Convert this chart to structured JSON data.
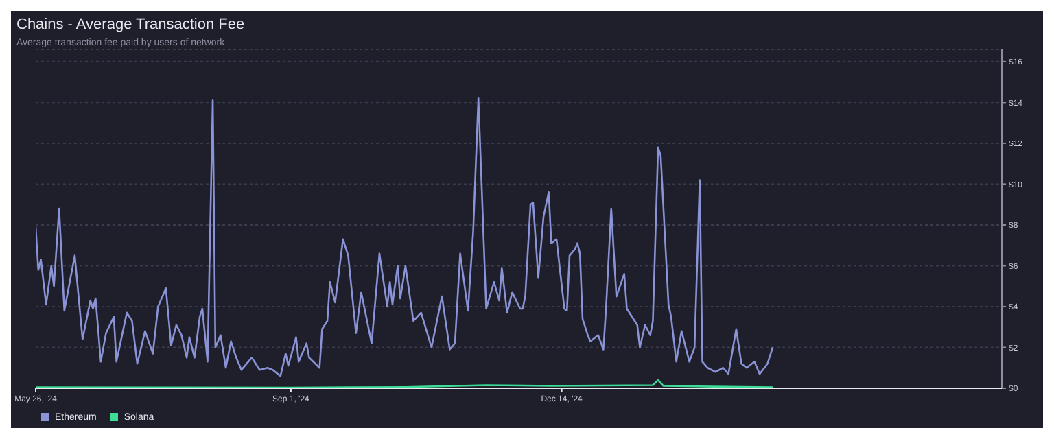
{
  "chart_data": {
    "type": "line",
    "title": "Chains - Average Transaction Fee",
    "subtitle": "Average transaction fee paid by users of network",
    "xlim": [
      "2024-05-26",
      "2025-06-01"
    ],
    "xticks": [
      {
        "value": "2024-05-26",
        "label": "May 26, '24"
      },
      {
        "value": "2024-09-01",
        "label": "Sep 1, '24"
      },
      {
        "value": "2024-12-14",
        "label": "Dec 14, '24"
      }
    ],
    "ylim": [
      0,
      16.6
    ],
    "yticks": [
      {
        "value": 0,
        "label": "$0"
      },
      {
        "value": 2,
        "label": "$2"
      },
      {
        "value": 4,
        "label": "$4"
      },
      {
        "value": 6,
        "label": "$6"
      },
      {
        "value": 8,
        "label": "$8"
      },
      {
        "value": 10,
        "label": "$10"
      },
      {
        "value": 12,
        "label": "$12"
      },
      {
        "value": 14,
        "label": "$14"
      },
      {
        "value": 16,
        "label": "$16"
      }
    ],
    "grid": "y",
    "legend": "bottom left",
    "marker": "none",
    "line_style": "solid",
    "series": [
      {
        "name": "Ethereum",
        "color": "#8a93d6",
        "x": [
          "2024-05-26",
          "2024-05-27",
          "2024-05-28",
          "2024-05-30",
          "2024-06-01",
          "2024-06-02",
          "2024-06-04",
          "2024-06-06",
          "2024-06-10",
          "2024-06-13",
          "2024-06-16",
          "2024-06-17",
          "2024-06-18",
          "2024-06-20",
          "2024-06-22",
          "2024-06-25",
          "2024-06-26",
          "2024-06-30",
          "2024-07-02",
          "2024-07-04",
          "2024-07-07",
          "2024-07-10",
          "2024-07-12",
          "2024-07-15",
          "2024-07-17",
          "2024-07-19",
          "2024-07-21",
          "2024-07-23",
          "2024-07-24",
          "2024-07-26",
          "2024-07-28",
          "2024-07-29",
          "2024-07-31",
          "2024-08-02",
          "2024-08-03",
          "2024-08-05",
          "2024-08-07",
          "2024-08-09",
          "2024-08-11",
          "2024-08-13",
          "2024-08-17",
          "2024-08-20",
          "2024-08-23",
          "2024-08-25",
          "2024-08-28",
          "2024-08-30",
          "2024-08-31",
          "2024-09-03",
          "2024-09-04",
          "2024-09-07",
          "2024-09-08",
          "2024-09-12",
          "2024-09-13",
          "2024-09-15",
          "2024-09-16",
          "2024-09-18",
          "2024-09-21",
          "2024-09-23",
          "2024-09-26",
          "2024-09-28",
          "2024-10-02",
          "2024-10-05",
          "2024-10-08",
          "2024-10-09",
          "2024-10-10",
          "2024-10-12",
          "2024-10-13",
          "2024-10-15",
          "2024-10-18",
          "2024-10-21",
          "2024-10-25",
          "2024-10-29",
          "2024-11-01",
          "2024-11-03",
          "2024-11-05",
          "2024-11-08",
          "2024-11-10",
          "2024-11-12",
          "2024-11-15",
          "2024-11-18",
          "2024-11-20",
          "2024-11-21",
          "2024-11-23",
          "2024-11-25",
          "2024-11-28",
          "2024-11-29",
          "2024-11-30",
          "2024-12-02",
          "2024-12-03",
          "2024-12-05",
          "2024-12-07",
          "2024-12-09",
          "2024-12-10",
          "2024-12-12",
          "2024-12-15",
          "2024-12-16",
          "2024-12-17",
          "2024-12-19",
          "2024-12-20",
          "2024-12-21",
          "2024-12-22",
          "2024-12-24",
          "2024-12-25",
          "2024-12-28",
          "2024-12-30",
          "2024-12-31",
          "2025-01-02",
          "2025-01-04",
          "2025-01-07",
          "2025-01-08",
          "2025-01-12",
          "2025-01-13",
          "2025-01-15",
          "2025-01-17",
          "2025-01-18",
          "2025-01-20",
          "2025-01-21",
          "2025-01-24",
          "2025-01-25",
          "2025-01-27",
          "2025-01-29",
          "2025-02-01",
          "2025-02-03",
          "2025-02-05",
          "2025-02-06",
          "2025-02-08",
          "2025-02-11",
          "2025-02-14",
          "2025-02-16",
          "2025-02-19",
          "2025-02-21",
          "2025-02-23",
          "2025-02-26",
          "2025-02-28",
          "2025-03-03",
          "2025-03-05"
        ],
        "values": [
          7.9,
          5.8,
          6.3,
          4.1,
          6.0,
          5.0,
          8.8,
          3.8,
          6.5,
          2.4,
          4.3,
          3.9,
          4.4,
          1.3,
          2.7,
          3.5,
          1.3,
          3.7,
          3.3,
          1.2,
          2.8,
          1.7,
          4.0,
          4.9,
          2.1,
          3.1,
          2.6,
          1.5,
          2.5,
          1.5,
          3.5,
          3.9,
          1.3,
          14.1,
          2.0,
          2.6,
          1.0,
          2.3,
          1.5,
          0.9,
          1.5,
          0.9,
          1.0,
          0.9,
          0.6,
          1.7,
          1.1,
          2.5,
          1.3,
          2.2,
          1.5,
          1.0,
          2.9,
          3.3,
          5.2,
          4.2,
          7.3,
          6.5,
          2.7,
          4.7,
          2.2,
          6.6,
          4.0,
          5.2,
          4.1,
          6.0,
          4.4,
          6.0,
          3.3,
          3.7,
          2.0,
          4.5,
          1.9,
          2.2,
          6.6,
          3.8,
          7.7,
          14.2,
          3.9,
          5.2,
          4.3,
          5.9,
          3.7,
          4.7,
          3.9,
          3.9,
          4.5,
          9.0,
          9.1,
          5.4,
          8.4,
          9.6,
          7.1,
          7.3,
          3.9,
          3.8,
          6.5,
          6.8,
          7.1,
          6.6,
          3.4,
          2.6,
          2.3,
          2.6,
          1.9,
          3.9,
          8.8,
          4.5,
          5.6,
          3.9,
          3.1,
          2.0,
          3.1,
          2.6,
          3.3,
          11.8,
          11.4,
          4.1,
          3.5,
          1.3,
          2.8,
          1.3,
          2.0,
          10.2,
          1.3,
          1.0,
          0.8,
          1.0,
          0.7,
          2.9,
          1.2,
          1.0,
          1.3,
          0.7,
          1.2,
          2.0
        ]
      },
      {
        "name": "Solana",
        "color": "#3ddc97",
        "x": [
          "2024-05-26",
          "2024-07-15",
          "2024-09-01",
          "2024-10-15",
          "2024-11-15",
          "2024-12-10",
          "2025-01-18",
          "2025-01-20",
          "2025-01-22",
          "2025-02-10",
          "2025-03-05"
        ],
        "values": [
          0.05,
          0.04,
          0.03,
          0.06,
          0.15,
          0.12,
          0.15,
          0.4,
          0.12,
          0.08,
          0.05
        ]
      }
    ]
  }
}
